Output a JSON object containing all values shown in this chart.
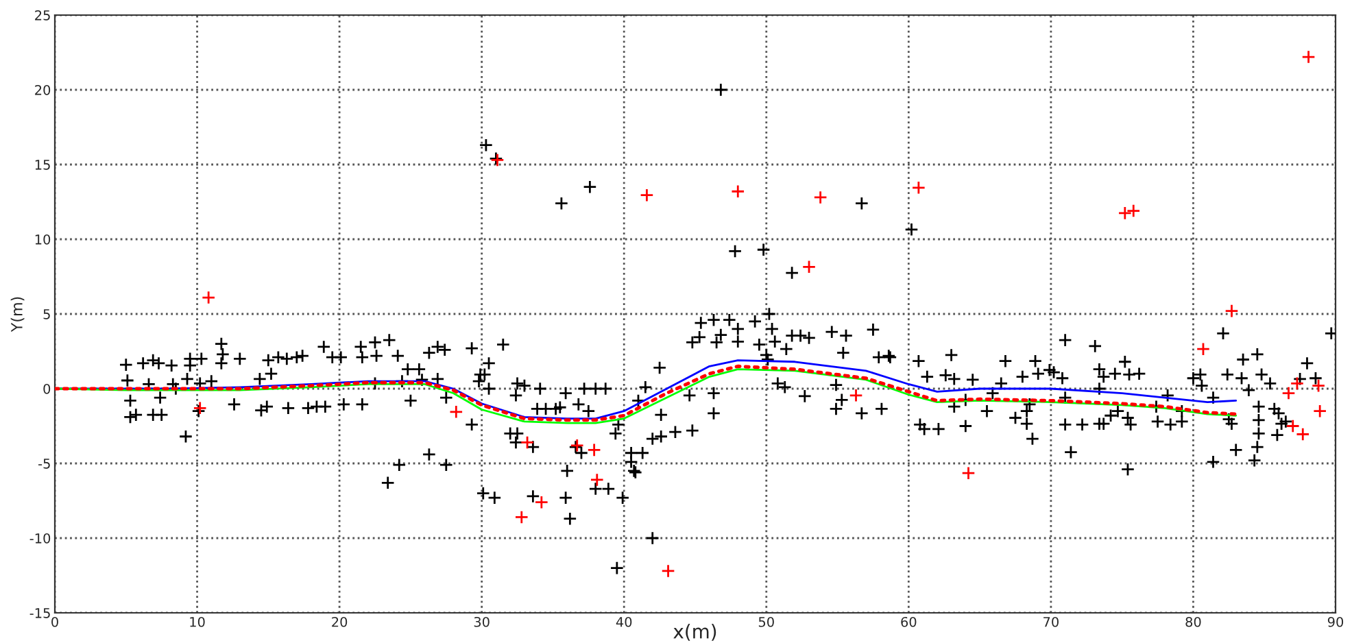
{
  "chart_data": {
    "type": "scatter",
    "xlabel": "x(m)",
    "ylabel": "Y(m)",
    "xlim": [
      0,
      90
    ],
    "ylim": [
      -15,
      25
    ],
    "xticks": [
      0,
      10,
      20,
      30,
      40,
      50,
      60,
      70,
      80,
      90
    ],
    "yticks": [
      -15,
      -10,
      -5,
      0,
      5,
      10,
      15,
      20,
      25
    ],
    "grid": true,
    "series": [
      {
        "color": "#000000",
        "marker": "cross",
        "x": [
          5.0,
          5.1,
          5.3,
          5.3,
          5.7,
          6.2,
          6.9,
          7.3,
          6.6,
          6.9,
          7.5,
          7.4,
          8.2,
          8.3,
          8.5,
          9.2,
          9.3,
          9.5,
          9.5,
          10.3,
          10.2,
          10.1,
          11.0,
          11.7,
          11.8,
          11.7,
          13.0,
          12.6,
          14.4,
          14.5,
          14.9,
          15.2,
          15.0,
          15.7,
          16.3,
          16.4,
          17.0,
          17.4,
          17.8,
          18.4,
          19.0,
          18.9,
          19.5,
          20.1,
          20.3,
          21.5,
          21.6,
          21.6,
          22.5,
          22.6,
          22.5,
          23.5,
          24.1,
          23.4,
          24.2,
          24.4,
          24.8,
          25.0,
          25.6,
          25.8,
          26.3,
          26.3,
          26.9,
          26.9,
          27.4,
          27.5,
          27.5,
          29.3,
          29.3,
          29.8,
          29.9,
          30.1,
          31.5,
          30.5,
          30.2,
          30.5,
          30.9,
          32.5,
          32.4,
          33.0,
          32.0,
          32.5,
          32.4,
          33.6,
          34.1,
          33.9,
          34.5,
          35.2,
          35.5,
          35.9,
          36.8,
          37.2,
          38.0,
          38.7,
          37.5,
          36.0,
          35.9,
          36.2,
          36.6,
          37.0,
          33.6,
          38.0,
          38.9,
          39.4,
          39.6,
          40.5,
          40.7,
          40.8,
          40.5,
          41.3,
          39.9,
          39.5,
          42.0,
          41.0,
          41.5,
          42.5,
          42.6,
          42.0,
          42.6,
          43.6,
          44.8,
          44.6,
          44.8,
          45.3,
          45.4,
          46.3,
          47.4,
          46.5,
          46.8,
          48.0,
          48.0,
          49.2,
          49.5,
          50.2,
          50.4,
          50.6,
          50.0,
          50.1,
          46.3,
          46.3,
          50.8,
          51.3,
          51.4,
          51.8,
          52.4,
          53.0,
          52.7,
          54.6,
          55.6,
          55.4,
          54.9,
          54.9,
          55.3,
          56.7,
          57.5,
          57.9,
          58.1,
          58.6,
          30.3,
          31.0,
          35.6,
          37.6,
          46.8,
          47.8,
          49.8,
          51.8,
          56.7,
          60.2,
          58.7,
          60.7,
          61.3,
          60.8,
          61.1,
          62.1,
          62.6,
          63.0,
          63.2,
          63.2,
          64.0,
          64.0,
          64.5,
          65.5,
          65.9,
          66.5,
          66.8,
          67.5,
          68.0,
          68.3,
          68.3,
          68.5,
          68.7,
          68.9,
          69.1,
          69.9,
          70.2,
          70.8,
          71.0,
          71.0,
          71.0,
          71.4,
          72.2,
          73.1,
          73.4,
          73.7,
          73.4,
          73.4,
          73.7,
          74.2,
          74.5,
          74.7,
          75.2,
          75.5,
          75.4,
          75.6,
          75.4,
          76.2,
          77.4,
          77.5,
          78.4,
          78.2,
          79.2,
          79.2,
          80.0,
          80.5,
          80.6,
          81.4,
          81.4,
          82.1,
          82.4,
          82.5,
          82.7,
          83.0,
          83.4,
          83.5,
          83.9,
          84.5,
          84.3,
          84.5,
          84.6,
          84.6,
          84.6,
          84.8,
          85.4,
          85.7,
          85.9,
          86.0,
          86.2,
          86.5,
          87.5,
          88.0,
          88.6,
          89.7
        ],
        "values": [
          1.6,
          0.55,
          -0.8,
          -1.9,
          -1.75,
          1.7,
          1.9,
          1.7,
          0.3,
          -1.75,
          -1.75,
          -0.6,
          1.55,
          0.3,
          0,
          -3.2,
          0.65,
          1.55,
          2.0,
          2.0,
          0.35,
          -1.5,
          0.5,
          3.0,
          2.3,
          1.7,
          2.0,
          -1.05,
          0.65,
          -1.45,
          -1.2,
          1.0,
          1.9,
          2.1,
          2.0,
          -1.3,
          2.1,
          2.2,
          -1.3,
          -1.2,
          -1.2,
          2.8,
          2.1,
          2.1,
          -1.05,
          2.8,
          2.1,
          -1.05,
          3.1,
          2.2,
          0.35,
          3.25,
          2.2,
          -6.3,
          -5.1,
          0.5,
          1.3,
          -0.8,
          1.3,
          0.6,
          2.4,
          -4.4,
          2.8,
          0.65,
          2.6,
          -5.1,
          -0.6,
          2.7,
          -2.4,
          0.5,
          0.95,
          -7.0,
          2.95,
          1.7,
          0.95,
          0,
          -7.3,
          0.35,
          -0.45,
          0.2,
          -3.0,
          -3.0,
          -3.6,
          -3.9,
          0,
          -1.35,
          -1.35,
          -1.35,
          -1.25,
          -0.3,
          -1.05,
          0,
          0,
          0,
          -1.5,
          -5.5,
          -7.3,
          -8.7,
          -3.9,
          -4.3,
          -7.2,
          -6.7,
          -6.7,
          -3.0,
          -2.4,
          -4.9,
          -5.5,
          -5.6,
          -4.3,
          -4.3,
          -7.3,
          -12.0,
          -10.0,
          -0.8,
          0.1,
          1.4,
          -1.75,
          -3.35,
          -3.2,
          -2.9,
          -2.8,
          -0.45,
          3.1,
          3.45,
          4.4,
          4.6,
          4.6,
          3.1,
          3.6,
          4.0,
          3.15,
          4.5,
          2.95,
          5.0,
          4.0,
          3.15,
          2.25,
          1.95,
          -0.3,
          -1.65,
          0.35,
          0.1,
          2.65,
          3.55,
          3.55,
          3.4,
          -0.5,
          3.8,
          3.55,
          2.4,
          0.25,
          -1.35,
          -0.75,
          -1.65,
          3.95,
          2.1,
          -1.35,
          2.2,
          16.3,
          15.4,
          12.4,
          13.5,
          20.0,
          9.2,
          9.3,
          7.75,
          12.4,
          10.65,
          2.1,
          1.85,
          0.8,
          -2.4,
          -2.7,
          -2.7,
          0.9,
          2.25,
          0.65,
          -1.2,
          -0.75,
          -2.5,
          0.6,
          -1.5,
          -0.3,
          0.35,
          1.85,
          -1.95,
          0.8,
          -1.5,
          -2.35,
          -1.05,
          -3.35,
          1.85,
          1.0,
          1.25,
          1.1,
          0.7,
          3.25,
          -2.4,
          -0.6,
          -4.25,
          -2.4,
          2.85,
          1.3,
          0.8,
          0,
          -2.35,
          -2.35,
          -1.8,
          1.0,
          -1.5,
          1.8,
          0.95,
          -1.95,
          -2.4,
          -5.4,
          1.0,
          -1.2,
          -2.2,
          -2.4,
          -0.45,
          -2.2,
          -1.5,
          0.7,
          0.95,
          0.2,
          -4.9,
          -0.6,
          3.7,
          0.95,
          -2.05,
          -2.35,
          -4.1,
          0.7,
          1.95,
          -0.1,
          2.3,
          -4.8,
          -3.9,
          -3.0,
          -2.1,
          -1.2,
          0.95,
          0.35,
          -1.35,
          -3.1,
          -1.65,
          -2.35,
          -2.2,
          0.65,
          1.7,
          0.7,
          3.7
        ]
      },
      {
        "color": "#ff0000",
        "marker": "cross",
        "x": [
          10.2,
          10.8,
          28.2,
          33.2,
          36.7,
          37.9,
          38.1,
          34.2,
          32.8,
          43.1,
          56.3,
          31.1,
          41.6,
          48.0,
          53.8,
          53.0,
          60.7,
          75.2,
          75.8,
          88.1,
          82.7,
          80.7,
          64.2,
          86.7,
          87.3,
          88.8,
          88.9,
          87.0,
          87.7
        ],
        "values": [
          -1.3,
          6.1,
          -1.55,
          -3.6,
          -3.8,
          -4.1,
          -6.1,
          -7.6,
          -8.6,
          -12.2,
          -0.45,
          15.3,
          12.95,
          13.2,
          12.8,
          8.15,
          13.45,
          11.75,
          11.9,
          22.2,
          5.2,
          2.65,
          -5.65,
          -0.3,
          0.35,
          0.2,
          -1.5,
          -2.5,
          -3.05
        ]
      },
      {
        "type": "line",
        "color": "#0000ff",
        "line_style": "solid",
        "x": [
          0,
          5,
          8,
          13,
          18,
          22,
          26,
          28,
          30,
          33,
          36,
          38,
          40,
          43,
          46,
          48,
          52,
          57,
          60,
          62,
          65,
          70,
          75,
          78,
          81,
          83
        ],
        "values": [
          0,
          0,
          0,
          0.1,
          0.3,
          0.5,
          0.5,
          0,
          -1,
          -1.9,
          -2.0,
          -2.0,
          -1.5,
          0,
          1.5,
          1.9,
          1.8,
          1.2,
          0.3,
          -0.2,
          0,
          0,
          -0.3,
          -0.6,
          -0.9,
          -0.8
        ]
      },
      {
        "type": "line",
        "color": "#00ff00",
        "line_style": "solid",
        "x": [
          0,
          5,
          8,
          13,
          18,
          22,
          26,
          28,
          30,
          33,
          36,
          38,
          40,
          43,
          46,
          48,
          52,
          57,
          60,
          62,
          65,
          70,
          75,
          78,
          81,
          83
        ],
        "values": [
          0,
          -0.1,
          -0.1,
          -0.1,
          0.1,
          0.3,
          0.3,
          -0.3,
          -1.4,
          -2.2,
          -2.3,
          -2.3,
          -2.0,
          -0.6,
          0.8,
          1.3,
          1.2,
          0.6,
          -0.4,
          -0.9,
          -0.8,
          -0.9,
          -1.1,
          -1.3,
          -1.7,
          -1.8
        ]
      },
      {
        "type": "line",
        "color": "#ff0000",
        "line_style": "dotted",
        "x": [
          0,
          5,
          8,
          13,
          18,
          22,
          26,
          28,
          30,
          33,
          36,
          38,
          40,
          43,
          46,
          48,
          52,
          57,
          60,
          62,
          65,
          70,
          75,
          78,
          81,
          83
        ],
        "values": [
          0,
          0,
          0,
          0,
          0.2,
          0.4,
          0.4,
          -0.1,
          -1.1,
          -2.0,
          -2.1,
          -2.1,
          -1.8,
          -0.3,
          1.0,
          1.5,
          1.3,
          0.7,
          -0.2,
          -0.8,
          -0.7,
          -0.8,
          -1.0,
          -1.2,
          -1.6,
          -1.7
        ]
      }
    ]
  }
}
